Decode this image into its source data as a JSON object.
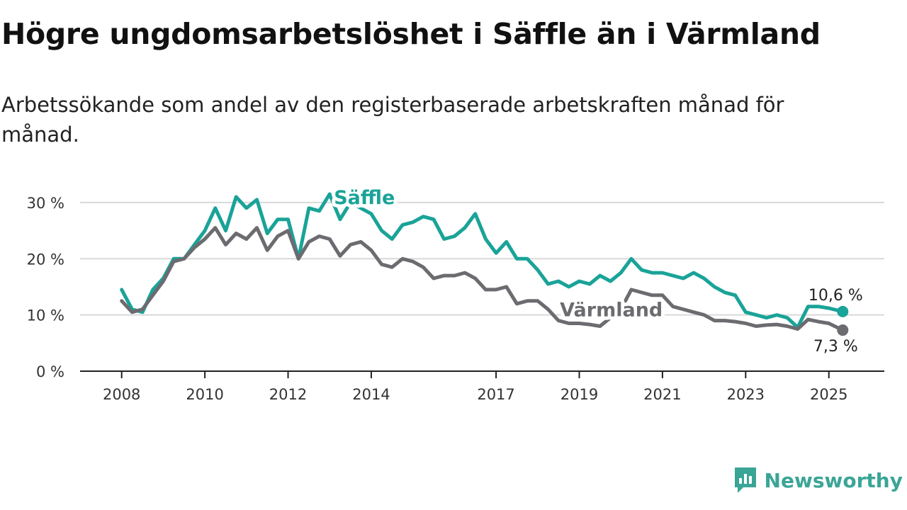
{
  "header": {
    "title": "Högre ungdomsarbetslöshet i Säffle än i Värmland",
    "subtitle": "Arbetssökande som andel av den registerbaserade arbetskraften månad för månad."
  },
  "brand": {
    "name": "Newsworthy",
    "icon": "newsworthy-logo-icon",
    "color": "#3aa596"
  },
  "chart_data": {
    "type": "line",
    "title": "Högre ungdomsarbetslöshet i Säffle än i Värmland",
    "subtitle": "Arbetssökande som andel av den registerbaserade arbetskraften månad för månad.",
    "x_start": "2008-01",
    "x_end": "2025-05",
    "xlim": [
      "2007-01",
      "2026-05"
    ],
    "x_ticks": [
      {
        "label": "2008",
        "date": "2008-01"
      },
      {
        "label": "2010",
        "date": "2010-01"
      },
      {
        "label": "2012",
        "date": "2012-01"
      },
      {
        "label": "2014",
        "date": "2014-01"
      },
      {
        "label": "2017",
        "date": "2017-01"
      },
      {
        "label": "2019",
        "date": "2019-01"
      },
      {
        "label": "2021",
        "date": "2021-01"
      },
      {
        "label": "2023",
        "date": "2023-01"
      },
      {
        "label": "2025",
        "date": "2025-01"
      }
    ],
    "y_ticks": [
      {
        "label": "0 %",
        "value": 0
      },
      {
        "label": "10 %",
        "value": 10
      },
      {
        "label": "20 %",
        "value": 20
      },
      {
        "label": "30 %",
        "value": 30
      }
    ],
    "ylim": [
      0,
      32
    ],
    "grid": true,
    "series": [
      {
        "name": "Säffle",
        "color": "#1aa398",
        "label_position": "above-line",
        "end_label": "10,6 %",
        "anchors": [
          [
            "2008-01",
            14.5
          ],
          [
            "2008-04",
            11
          ],
          [
            "2008-07",
            10.5
          ],
          [
            "2008-10",
            14.5
          ],
          [
            "2009-01",
            16.5
          ],
          [
            "2009-04",
            20
          ],
          [
            "2009-07",
            20
          ],
          [
            "2009-10",
            22.5
          ],
          [
            "2010-01",
            25
          ],
          [
            "2010-04",
            29
          ],
          [
            "2010-07",
            25
          ],
          [
            "2010-10",
            31
          ],
          [
            "2011-01",
            29
          ],
          [
            "2011-04",
            30.5
          ],
          [
            "2011-07",
            24.5
          ],
          [
            "2011-10",
            27
          ],
          [
            "2012-01",
            27
          ],
          [
            "2012-04",
            20
          ],
          [
            "2012-07",
            29
          ],
          [
            "2012-10",
            28.5
          ],
          [
            "2013-01",
            31.5
          ],
          [
            "2013-04",
            27
          ],
          [
            "2013-07",
            30
          ],
          [
            "2014-01",
            28
          ],
          [
            "2014-04",
            25
          ],
          [
            "2014-07",
            23.5
          ],
          [
            "2014-10",
            26
          ],
          [
            "2015-01",
            26.5
          ],
          [
            "2015-04",
            27.5
          ],
          [
            "2015-07",
            27
          ],
          [
            "2015-10",
            23.5
          ],
          [
            "2016-01",
            24
          ],
          [
            "2016-04",
            25.5
          ],
          [
            "2016-07",
            28
          ],
          [
            "2016-10",
            23.5
          ],
          [
            "2017-01",
            21
          ],
          [
            "2017-04",
            23
          ],
          [
            "2017-07",
            20
          ],
          [
            "2017-10",
            20
          ],
          [
            "2018-01",
            18
          ],
          [
            "2018-04",
            15.5
          ],
          [
            "2018-07",
            16
          ],
          [
            "2018-10",
            15
          ],
          [
            "2019-01",
            16
          ],
          [
            "2019-04",
            15.5
          ],
          [
            "2019-07",
            17
          ],
          [
            "2019-10",
            16
          ],
          [
            "2020-01",
            17.5
          ],
          [
            "2020-04",
            20
          ],
          [
            "2020-07",
            18
          ],
          [
            "2020-10",
            17.5
          ],
          [
            "2021-01",
            17.5
          ],
          [
            "2021-04",
            17
          ],
          [
            "2021-07",
            16.5
          ],
          [
            "2021-10",
            17.5
          ],
          [
            "2022-01",
            16.5
          ],
          [
            "2022-04",
            15
          ],
          [
            "2022-07",
            14
          ],
          [
            "2022-10",
            13.5
          ],
          [
            "2023-01",
            10.5
          ],
          [
            "2023-04",
            10
          ],
          [
            "2023-07",
            9.5
          ],
          [
            "2023-10",
            10
          ],
          [
            "2024-01",
            9.5
          ],
          [
            "2024-04",
            7.8
          ],
          [
            "2024-07",
            11.5
          ],
          [
            "2024-10",
            11.5
          ],
          [
            "2025-01",
            11.2
          ],
          [
            "2025-05",
            10.6
          ]
        ]
      },
      {
        "name": "Värmland",
        "color": "#6b6b70",
        "label_position": "below-line",
        "end_label": "7,3 %",
        "anchors": [
          [
            "2008-01",
            12.5
          ],
          [
            "2008-04",
            10.5
          ],
          [
            "2008-07",
            11
          ],
          [
            "2008-10",
            13.5
          ],
          [
            "2009-01",
            16
          ],
          [
            "2009-04",
            19.5
          ],
          [
            "2009-07",
            20
          ],
          [
            "2009-10",
            22
          ],
          [
            "2010-01",
            23.5
          ],
          [
            "2010-04",
            25.5
          ],
          [
            "2010-07",
            22.5
          ],
          [
            "2010-10",
            24.5
          ],
          [
            "2011-01",
            23.5
          ],
          [
            "2011-04",
            25.5
          ],
          [
            "2011-07",
            21.5
          ],
          [
            "2011-10",
            24
          ],
          [
            "2012-01",
            25
          ],
          [
            "2012-04",
            20
          ],
          [
            "2012-07",
            23
          ],
          [
            "2012-10",
            24
          ],
          [
            "2013-01",
            23.5
          ],
          [
            "2013-04",
            20.5
          ],
          [
            "2013-07",
            22.5
          ],
          [
            "2013-10",
            23
          ],
          [
            "2014-01",
            21.5
          ],
          [
            "2014-04",
            19
          ],
          [
            "2014-07",
            18.5
          ],
          [
            "2014-10",
            20
          ],
          [
            "2015-01",
            19.5
          ],
          [
            "2015-04",
            18.5
          ],
          [
            "2015-07",
            16.5
          ],
          [
            "2015-10",
            17
          ],
          [
            "2016-01",
            17
          ],
          [
            "2016-04",
            17.5
          ],
          [
            "2016-07",
            16.5
          ],
          [
            "2016-10",
            14.5
          ],
          [
            "2017-01",
            14.5
          ],
          [
            "2017-04",
            15
          ],
          [
            "2017-07",
            12
          ],
          [
            "2017-10",
            12.5
          ],
          [
            "2018-01",
            12.5
          ],
          [
            "2018-04",
            11
          ],
          [
            "2018-07",
            9
          ],
          [
            "2018-10",
            8.5
          ],
          [
            "2019-01",
            8.5
          ],
          [
            "2019-04",
            8.3
          ],
          [
            "2019-07",
            8
          ],
          [
            "2019-10",
            9.5
          ],
          [
            "2020-01",
            11
          ],
          [
            "2020-04",
            14.5
          ],
          [
            "2020-07",
            14
          ],
          [
            "2020-10",
            13.5
          ],
          [
            "2021-01",
            13.5
          ],
          [
            "2021-04",
            11.5
          ],
          [
            "2021-07",
            11
          ],
          [
            "2021-10",
            10.5
          ],
          [
            "2022-01",
            10
          ],
          [
            "2022-04",
            9
          ],
          [
            "2022-07",
            9
          ],
          [
            "2022-10",
            8.8
          ],
          [
            "2023-01",
            8.5
          ],
          [
            "2023-04",
            8
          ],
          [
            "2023-07",
            8.2
          ],
          [
            "2023-10",
            8.3
          ],
          [
            "2024-01",
            8
          ],
          [
            "2024-04",
            7.5
          ],
          [
            "2024-07",
            9.2
          ],
          [
            "2024-10",
            8.8
          ],
          [
            "2025-01",
            8.5
          ],
          [
            "2025-05",
            7.3
          ]
        ]
      }
    ]
  }
}
